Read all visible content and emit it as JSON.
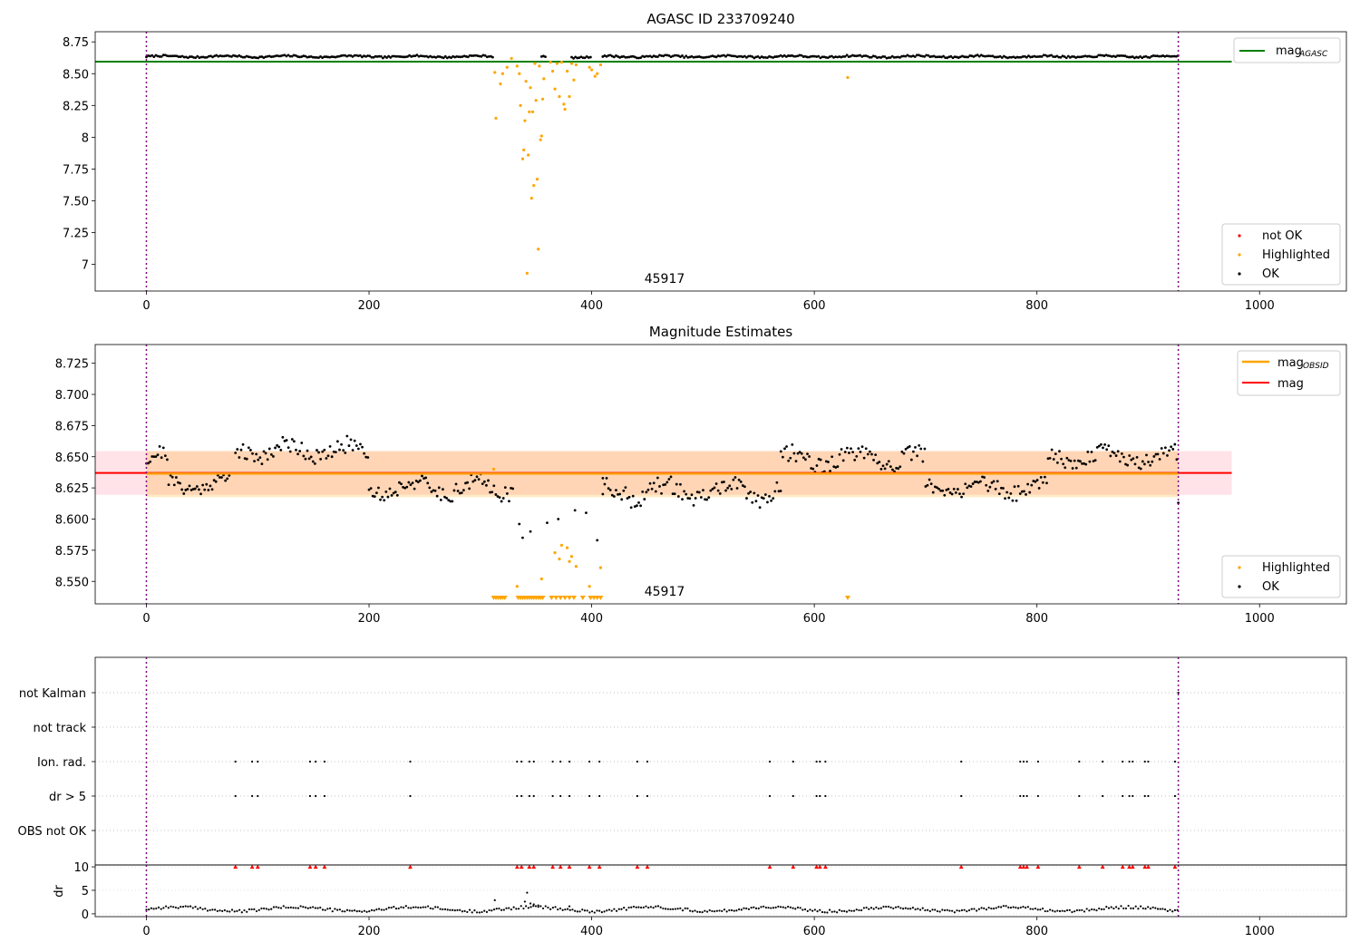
{
  "chart_data": [
    {
      "type": "scatter",
      "title": "AGASC ID 233709240",
      "xlim": [
        -46,
        1078
      ],
      "ylim": [
        6.79,
        8.83
      ],
      "xticks": [
        0,
        200,
        400,
        600,
        800,
        1000
      ],
      "yticks": [
        7.0,
        7.25,
        7.5,
        7.75,
        8.0,
        8.25,
        8.5,
        8.75
      ],
      "annotation": "45917",
      "vlines": [
        0,
        927
      ],
      "lines": [
        {
          "name": "mag_AGASC",
          "legend_main": "mag",
          "legend_sub": "AGASC",
          "color": "#008000",
          "y": 8.595,
          "x": [
            -46,
            975
          ]
        }
      ],
      "legend_lines_pos": "upper right",
      "legend_points_pos": "lower right",
      "legend_points": [
        {
          "label": "not OK",
          "color": "#ff0000"
        },
        {
          "label": "Highlighted",
          "color": "#ffa500"
        },
        {
          "label": "OK",
          "color": "#000000"
        }
      ],
      "ok_segments": [
        {
          "x0": 0,
          "x1": 312,
          "base": 8.635,
          "amp": 0.012
        },
        {
          "x0": 355,
          "x1": 360,
          "base": 8.63,
          "amp": 0.01
        },
        {
          "x0": 382,
          "x1": 400,
          "base": 8.63,
          "amp": 0.01
        },
        {
          "x0": 410,
          "x1": 927,
          "base": 8.635,
          "amp": 0.013
        }
      ],
      "highlighted": [
        [
          313,
          8.51
        ],
        [
          314,
          8.15
        ],
        [
          318,
          8.42
        ],
        [
          320,
          8.5
        ],
        [
          324,
          8.55
        ],
        [
          328,
          8.62
        ],
        [
          333,
          8.56
        ],
        [
          335,
          8.5
        ],
        [
          336,
          8.25
        ],
        [
          338,
          7.83
        ],
        [
          339,
          7.9
        ],
        [
          340,
          8.13
        ],
        [
          341,
          8.44
        ],
        [
          342,
          6.93
        ],
        [
          343,
          7.86
        ],
        [
          344,
          8.2
        ],
        [
          345,
          8.39
        ],
        [
          346,
          7.52
        ],
        [
          347,
          8.2
        ],
        [
          348,
          7.62
        ],
        [
          349,
          8.58
        ],
        [
          350,
          8.29
        ],
        [
          351,
          7.67
        ],
        [
          352,
          7.12
        ],
        [
          353,
          8.56
        ],
        [
          354,
          7.98
        ],
        [
          355,
          8.01
        ],
        [
          356,
          8.3
        ],
        [
          357,
          8.46
        ],
        [
          363,
          8.59
        ],
        [
          365,
          8.52
        ],
        [
          367,
          8.38
        ],
        [
          369,
          8.58
        ],
        [
          371,
          8.32
        ],
        [
          373,
          8.59
        ],
        [
          375,
          8.26
        ],
        [
          376,
          8.22
        ],
        [
          378,
          8.52
        ],
        [
          380,
          8.32
        ],
        [
          382,
          8.58
        ],
        [
          384,
          8.45
        ],
        [
          386,
          8.57
        ],
        [
          398,
          8.55
        ],
        [
          400,
          8.53
        ],
        [
          403,
          8.48
        ],
        [
          405,
          8.5
        ],
        [
          408,
          8.57
        ],
        [
          630,
          8.47
        ]
      ]
    },
    {
      "type": "scatter",
      "title": "Magnitude Estimates",
      "xlim": [
        -46,
        1078
      ],
      "ylim": [
        8.532,
        8.74
      ],
      "xticks": [
        0,
        200,
        400,
        600,
        800,
        1000
      ],
      "yticks": [
        8.55,
        8.575,
        8.6,
        8.625,
        8.65,
        8.675,
        8.7,
        8.725
      ],
      "ytick_labels": [
        "8.550",
        "8.575",
        "8.600",
        "8.625",
        "8.650",
        "8.675",
        "8.700",
        "8.725"
      ],
      "annotation": "45917",
      "vlines": [
        0,
        927
      ],
      "band_pink": [
        8.6195,
        8.6545
      ],
      "band_orange": [
        8.6175,
        8.6545
      ],
      "lines": [
        {
          "name": "mag_OBSID",
          "legend_main": "mag",
          "legend_sub": "OBSID",
          "color": "#ffa500",
          "y": 8.6365,
          "x": [
            0,
            927
          ]
        },
        {
          "name": "mag",
          "legend_main": "mag",
          "legend_sub": "",
          "color": "#ff0000",
          "y": 8.637,
          "x": [
            -46,
            975
          ]
        }
      ],
      "legend_lines_pos": "upper right",
      "legend_points_pos": "lower right",
      "legend_points": [
        {
          "label": "Highlighted",
          "color": "#ffa500"
        },
        {
          "label": "OK",
          "color": "#000000"
        }
      ],
      "ok_segments": [
        {
          "x0": 0,
          "x1": 20,
          "base": 8.648,
          "amp": 0.012
        },
        {
          "x0": 20,
          "x1": 75,
          "base": 8.628,
          "amp": 0.01
        },
        {
          "x0": 80,
          "x1": 200,
          "base": 8.655,
          "amp": 0.012
        },
        {
          "x0": 200,
          "x1": 330,
          "base": 8.625,
          "amp": 0.012
        },
        {
          "x0": 410,
          "x1": 570,
          "base": 8.622,
          "amp": 0.013
        },
        {
          "x0": 570,
          "x1": 700,
          "base": 8.648,
          "amp": 0.012
        },
        {
          "x0": 700,
          "x1": 810,
          "base": 8.625,
          "amp": 0.011
        },
        {
          "x0": 810,
          "x1": 927,
          "base": 8.65,
          "amp": 0.011
        }
      ],
      "ok_dips": [
        [
          335,
          8.596
        ],
        [
          338,
          8.585
        ],
        [
          345,
          8.59
        ],
        [
          360,
          8.597
        ],
        [
          370,
          8.6
        ],
        [
          385,
          8.607
        ],
        [
          395,
          8.605
        ],
        [
          405,
          8.583
        ],
        [
          410,
          8.62
        ],
        [
          927,
          8.613
        ]
      ],
      "highlighted": [
        [
          312,
          8.64
        ],
        [
          333,
          8.546
        ],
        [
          355,
          8.552
        ],
        [
          367,
          8.573
        ],
        [
          371,
          8.568
        ],
        [
          373,
          8.579
        ],
        [
          378,
          8.577
        ],
        [
          380,
          8.566
        ],
        [
          382,
          8.57
        ],
        [
          386,
          8.562
        ],
        [
          398,
          8.546
        ],
        [
          408,
          8.561
        ]
      ],
      "lower_limit_markers": [
        312,
        314,
        316,
        318,
        320,
        322,
        334,
        336,
        338,
        340,
        342,
        344,
        346,
        348,
        350,
        352,
        354,
        356,
        364,
        368,
        372,
        376,
        380,
        384,
        392,
        399,
        402,
        405,
        408,
        630
      ]
    },
    {
      "type": "scatter",
      "xlim": [
        -46,
        1078
      ],
      "categories": [
        "not Kalman",
        "not track",
        "Ion. rad.",
        "dr > 5",
        "OBS not OK"
      ],
      "flag_x": [
        80,
        95,
        100,
        147,
        152,
        160,
        237,
        333,
        337,
        344,
        348,
        365,
        372,
        380,
        398,
        407,
        441,
        450,
        560,
        581,
        602,
        605,
        610,
        732,
        785,
        788,
        791,
        801,
        838,
        859,
        877,
        883,
        886,
        897,
        900,
        924
      ],
      "not_kalman_x": [
        927
      ],
      "vlines": [
        0,
        927
      ]
    },
    {
      "type": "scatter",
      "ylabel": "dr",
      "xlim": [
        -46,
        1078
      ],
      "ylim": [
        -0.6,
        10.4
      ],
      "yticks": [
        0,
        5,
        10
      ],
      "xticks": [
        0,
        200,
        400,
        600,
        800,
        1000
      ],
      "vlines": [
        0,
        927
      ],
      "dr_outlier_x": [
        80,
        95,
        100,
        147,
        152,
        160,
        237,
        333,
        337,
        344,
        348,
        365,
        372,
        380,
        398,
        407,
        441,
        450,
        560,
        581,
        602,
        605,
        610,
        732,
        785,
        788,
        791,
        801,
        838,
        859,
        877,
        883,
        886,
        897,
        900,
        924
      ],
      "dr_spikes": [
        [
          313,
          2.9
        ],
        [
          340,
          2.6
        ],
        [
          342,
          4.5
        ],
        [
          345,
          2.2
        ],
        [
          348,
          2.0
        ],
        [
          352,
          1.8
        ],
        [
          380,
          1.6
        ]
      ]
    }
  ]
}
